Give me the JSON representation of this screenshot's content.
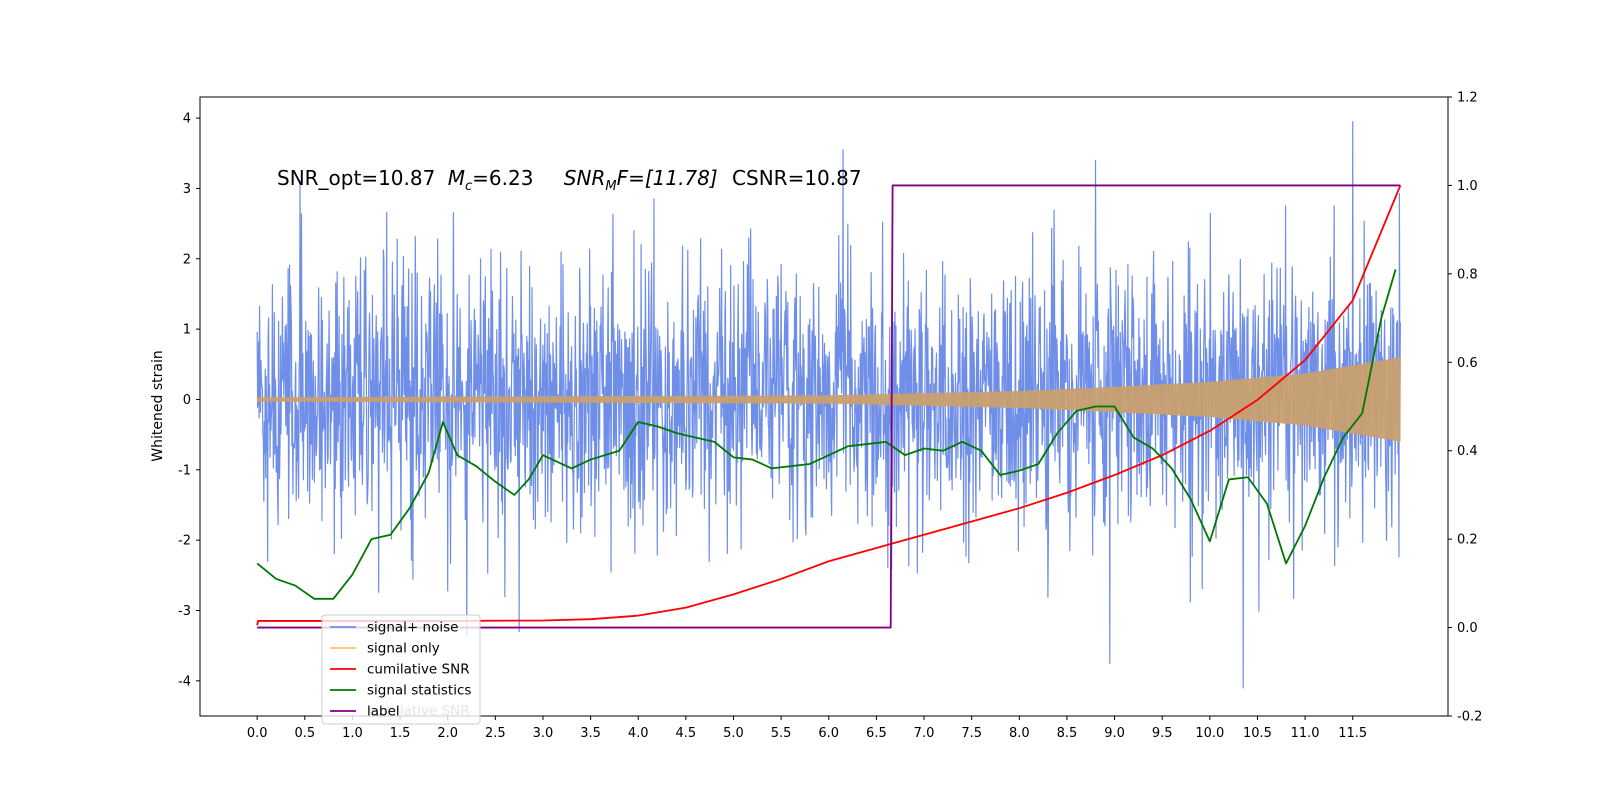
{
  "chart_data": {
    "type": "line",
    "title": "",
    "xlabel": "",
    "ylabel": "Whitened strain",
    "xlim": [
      -0.6,
      12.5
    ],
    "ylim": [
      -4.5,
      4.3
    ],
    "y2lim": [
      -0.2,
      1.2
    ],
    "xticks": [
      "0.0",
      "0.5",
      "1.0",
      "1.5",
      "2.0",
      "2.5",
      "3.0",
      "3.5",
      "4.0",
      "4.5",
      "5.0",
      "5.5",
      "6.0",
      "6.5",
      "7.0",
      "7.5",
      "8.0",
      "8.5",
      "9.0",
      "9.5",
      "10.0",
      "10.5",
      "11.0",
      "11.5"
    ],
    "yticks": [
      "4",
      "3",
      "2",
      "1",
      "0",
      "-1",
      "-2",
      "-3",
      "-4"
    ],
    "y2ticks": [
      "1.2",
      "1.0",
      "0.8",
      "0.6",
      "0.4",
      "0.2",
      "0.0",
      "-0.2"
    ],
    "grid": false,
    "annotation": {
      "snr_opt": "SNR_opt=10.87",
      "mc_symbol": "M",
      "mc_sub": "c",
      "mc_value": "=6.23",
      "snr_mf_symbol": "SNR",
      "snr_mf_sub": "M",
      "snr_mf_value": "F=[11.78]",
      "csnr": "CSNR=10.87"
    },
    "legend": {
      "placement": "lower-left",
      "entries": [
        "signal+ noise",
        "signal only",
        "cumilative SNR",
        "signal statistics",
        "label"
      ],
      "hidden_entry": "cumilative SNR"
    },
    "series": [
      {
        "name": "signal+ noise",
        "axis": "left",
        "color": "#6f8ee8",
        "x_range": [
          0.0,
          12.0
        ],
        "center": 0.05,
        "noise_sd": 0.95,
        "peaks": [
          [
            0.45,
            3.1
          ],
          [
            6.15,
            3.55
          ],
          [
            8.8,
            3.4
          ],
          [
            11.5,
            3.95
          ]
        ],
        "troughs": [
          [
            2.2,
            -3.35
          ],
          [
            2.75,
            -3.3
          ],
          [
            8.95,
            -3.75
          ],
          [
            10.35,
            -4.1
          ]
        ]
      },
      {
        "name": "signal only",
        "axis": "left",
        "color": "#c8a070",
        "x_range": [
          0.0,
          12.0
        ],
        "envelope": [
          [
            0.0,
            0.03
          ],
          [
            6.0,
            0.06
          ],
          [
            8.0,
            0.12
          ],
          [
            9.0,
            0.18
          ],
          [
            10.0,
            0.25
          ],
          [
            11.0,
            0.37
          ],
          [
            12.0,
            0.6
          ]
        ]
      },
      {
        "name": "cumilative SNR",
        "axis": "right",
        "color": "#ff0000",
        "x": [
          0.0,
          0.01,
          1.0,
          2.0,
          3.0,
          3.5,
          4.0,
          4.5,
          5.0,
          5.5,
          6.0,
          6.5,
          7.0,
          7.5,
          8.0,
          8.5,
          9.0,
          9.5,
          10.0,
          10.5,
          11.0,
          11.5,
          12.0
        ],
        "y": [
          0.005,
          0.015,
          0.015,
          0.015,
          0.016,
          0.019,
          0.027,
          0.045,
          0.075,
          0.11,
          0.15,
          0.18,
          0.21,
          0.24,
          0.27,
          0.305,
          0.345,
          0.39,
          0.445,
          0.515,
          0.605,
          0.74,
          1.0
        ]
      },
      {
        "name": "signal statistics",
        "axis": "right",
        "color": "#007800",
        "x": [
          0.0,
          0.2,
          0.4,
          0.6,
          0.8,
          1.0,
          1.2,
          1.4,
          1.6,
          1.8,
          1.95,
          2.1,
          2.3,
          2.5,
          2.7,
          2.85,
          3.0,
          3.3,
          3.5,
          3.8,
          4.0,
          4.2,
          4.4,
          4.6,
          4.8,
          5.0,
          5.2,
          5.4,
          5.6,
          5.8,
          6.0,
          6.2,
          6.4,
          6.6,
          6.8,
          7.0,
          7.2,
          7.4,
          7.6,
          7.8,
          8.0,
          8.2,
          8.4,
          8.6,
          8.8,
          9.0,
          9.2,
          9.4,
          9.6,
          9.8,
          10.0,
          10.2,
          10.4,
          10.6,
          10.8,
          11.0,
          11.2,
          11.4,
          11.6,
          11.8,
          11.95
        ],
        "y": [
          0.145,
          0.11,
          0.095,
          0.065,
          0.065,
          0.12,
          0.2,
          0.21,
          0.27,
          0.35,
          0.465,
          0.39,
          0.365,
          0.33,
          0.3,
          0.335,
          0.39,
          0.36,
          0.38,
          0.4,
          0.465,
          0.455,
          0.44,
          0.43,
          0.42,
          0.385,
          0.38,
          0.36,
          0.365,
          0.37,
          0.39,
          0.41,
          0.415,
          0.42,
          0.39,
          0.405,
          0.4,
          0.42,
          0.4,
          0.345,
          0.355,
          0.37,
          0.44,
          0.49,
          0.5,
          0.5,
          0.43,
          0.405,
          0.36,
          0.29,
          0.195,
          0.335,
          0.34,
          0.28,
          0.145,
          0.23,
          0.34,
          0.43,
          0.485,
          0.7,
          0.81
        ]
      },
      {
        "name": "label",
        "axis": "right",
        "color": "#800080",
        "x": [
          0.0,
          6.65,
          6.67,
          12.0
        ],
        "y": [
          0.0,
          0.0,
          1.0,
          1.0
        ]
      }
    ]
  }
}
